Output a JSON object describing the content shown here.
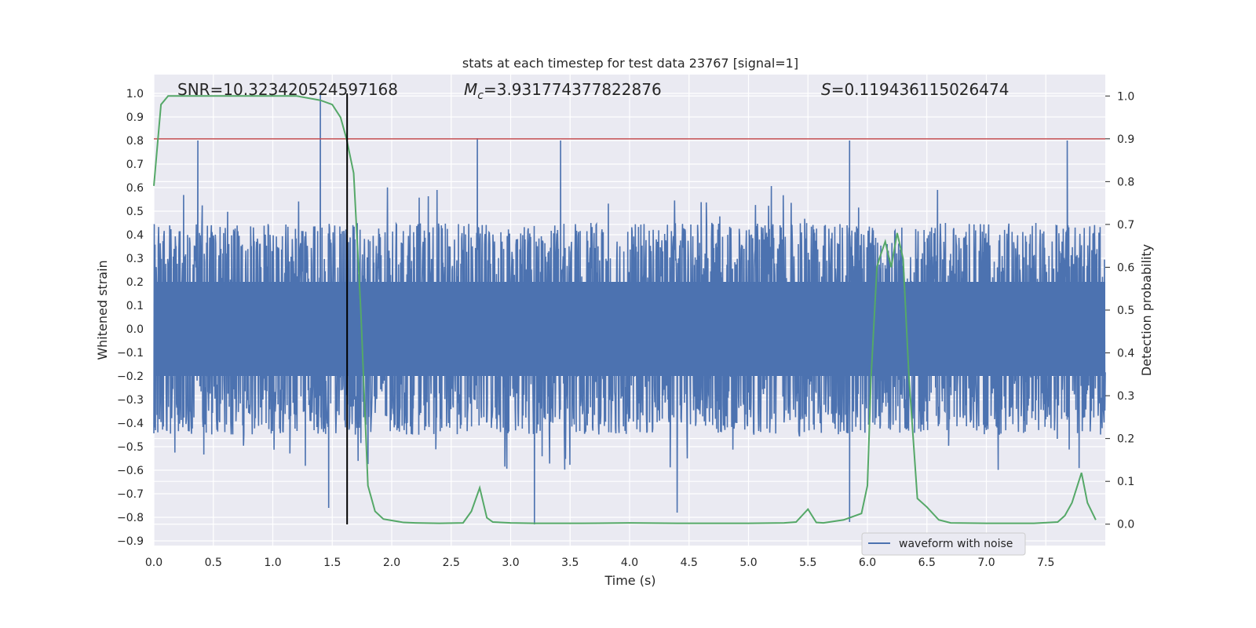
{
  "chart_data": {
    "type": "line",
    "title": "stats at each timestep for test data 23767 [signal=1]",
    "xlabel": "Time (s)",
    "ylabel": "Whitened strain",
    "ylabel_right": "Detection probability",
    "xlim": [
      0.0,
      8.0
    ],
    "ylim": [
      -0.92,
      1.08
    ],
    "ylim_right": [
      -0.05,
      1.05
    ],
    "xticks": [
      0.0,
      0.5,
      1.0,
      1.5,
      2.0,
      2.5,
      3.0,
      3.5,
      4.0,
      4.5,
      5.0,
      5.5,
      6.0,
      6.5,
      7.0,
      7.5
    ],
    "xtick_labels": [
      "0.0",
      "0.5",
      "1.0",
      "1.5",
      "2.0",
      "2.5",
      "3.0",
      "3.5",
      "4.0",
      "4.5",
      "5.0",
      "5.5",
      "6.0",
      "6.5",
      "7.0",
      "7.5"
    ],
    "yticks": [
      1.0,
      0.9,
      0.8,
      0.7,
      0.6,
      0.5,
      0.4,
      0.3,
      0.2,
      0.1,
      0.0,
      -0.1,
      -0.2,
      -0.3,
      -0.4,
      -0.5,
      -0.6,
      -0.7,
      -0.8,
      -0.9
    ],
    "ytick_labels": [
      "1.0",
      "0.9",
      "0.8",
      "0.7",
      "0.6",
      "0.5",
      "0.4",
      "0.3",
      "0.2",
      "0.1",
      "0.0",
      "−0.1",
      "−0.2",
      "−0.3",
      "−0.4",
      "−0.5",
      "−0.6",
      "−0.7",
      "−0.8",
      "−0.9"
    ],
    "yticks_right": [
      1.0,
      0.9,
      0.8,
      0.7,
      0.6,
      0.5,
      0.4,
      0.3,
      0.2,
      0.1,
      0.0
    ],
    "ytick_labels_right": [
      "1.0",
      "0.9",
      "0.8",
      "0.7",
      "0.6",
      "0.5",
      "0.4",
      "0.3",
      "0.2",
      "0.1",
      "0.0"
    ],
    "grid": true,
    "legend_position": "lower-right",
    "annotations": {
      "snr": "SNR=10.323420524597168",
      "mc_symbol": "M",
      "mc_sub": "c",
      "mc_value": "=3.931774377822876",
      "s_symbol": "S",
      "s_value": "=0.119436115026474"
    },
    "series": [
      {
        "name": "waveform with noise",
        "axis": "left",
        "color": "#4c72b0",
        "noise": {
          "duration_s": 8.0,
          "amplitude_typical": [
            -0.45,
            0.45
          ],
          "amplitude_extremes": [
            -0.84,
            1.0
          ]
        },
        "peaks": [
          {
            "t": 0.37,
            "v": 0.8
          },
          {
            "t": 1.4,
            "v": 1.0
          },
          {
            "t": 2.72,
            "v": 0.81
          },
          {
            "t": 3.42,
            "v": 0.8
          },
          {
            "t": 5.85,
            "v": 0.8
          },
          {
            "t": 7.68,
            "v": 0.8
          }
        ],
        "troughs": [
          {
            "t": 3.2,
            "v": -0.83
          },
          {
            "t": 5.85,
            "v": -0.82
          },
          {
            "t": 4.4,
            "v": -0.78
          },
          {
            "t": 1.47,
            "v": -0.76
          }
        ]
      },
      {
        "name": "",
        "axis": "right",
        "color": "#55a868",
        "x": [
          0.0,
          0.06,
          0.12,
          0.2,
          0.4,
          0.6,
          0.8,
          1.0,
          1.2,
          1.4,
          1.5,
          1.57,
          1.62,
          1.68,
          1.74,
          1.8,
          1.86,
          1.93,
          2.1,
          2.2,
          2.4,
          2.6,
          2.67,
          2.74,
          2.8,
          2.85,
          3.0,
          3.2,
          3.6,
          4.0,
          4.4,
          5.0,
          5.3,
          5.4,
          5.5,
          5.57,
          5.63,
          5.8,
          5.95,
          6.0,
          6.03,
          6.08,
          6.1,
          6.15,
          6.2,
          6.25,
          6.3,
          6.35,
          6.42,
          6.5,
          6.6,
          6.7,
          7.0,
          7.4,
          7.6,
          7.66,
          7.72,
          7.8,
          7.85,
          7.92
        ],
        "values": [
          0.79,
          0.98,
          1.0,
          1.0,
          1.0,
          1.0,
          1.0,
          1.0,
          1.0,
          0.99,
          0.98,
          0.95,
          0.9,
          0.82,
          0.5,
          0.09,
          0.03,
          0.012,
          0.004,
          0.003,
          0.002,
          0.003,
          0.03,
          0.085,
          0.015,
          0.005,
          0.003,
          0.002,
          0.002,
          0.003,
          0.002,
          0.002,
          0.003,
          0.005,
          0.035,
          0.004,
          0.003,
          0.01,
          0.025,
          0.09,
          0.34,
          0.6,
          0.62,
          0.66,
          0.6,
          0.68,
          0.62,
          0.34,
          0.06,
          0.04,
          0.01,
          0.003,
          0.002,
          0.002,
          0.005,
          0.02,
          0.05,
          0.12,
          0.05,
          0.01
        ]
      }
    ],
    "threshold": {
      "axis": "right",
      "value": 0.9,
      "color": "#c44e52"
    },
    "marker": {
      "axis": "left",
      "x": 1.625,
      "y_range": [
        -0.83,
        1.0
      ],
      "color": "#000000"
    }
  }
}
